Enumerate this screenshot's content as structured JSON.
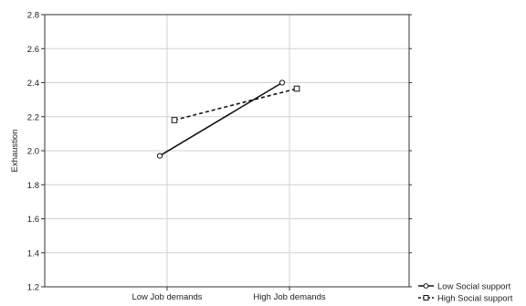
{
  "chart_data": {
    "type": "line",
    "ylabel": "Exhaustion",
    "xlabel": "",
    "ylim": [
      1.2,
      2.8
    ],
    "y_ticks": [
      "1.2",
      "1.4",
      "1.6",
      "1.8",
      "2.0",
      "2.2",
      "2.4",
      "2.6",
      "2.8"
    ],
    "categories": [
      "Low Job demands",
      "High Job demands"
    ],
    "grid": true,
    "legend_position": "bottom-right, outside plot",
    "series": [
      {
        "name": "Low Social support",
        "marker": "circle",
        "line": "solid",
        "color": "#111111",
        "values": [
          1.97,
          2.4
        ]
      },
      {
        "name": "High Social support",
        "marker": "square",
        "line": "dashed",
        "color": "#111111",
        "values": [
          2.18,
          2.365
        ]
      }
    ]
  }
}
